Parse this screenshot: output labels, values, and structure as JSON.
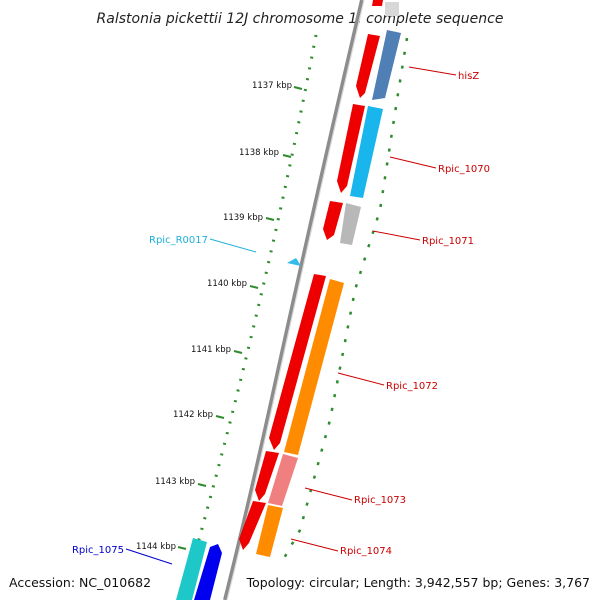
{
  "title": "Ralstonia pickettii 12J chromosome 1, complete sequence",
  "footer": {
    "accession": "Accession: NC_010682",
    "summary": "Topology: circular; Length: 3,942,557 bp; Genes: 3,767"
  },
  "colors": {
    "backbone": "#8c8c8c",
    "tick_green": "#2e8b2e",
    "label_red": "#cc0000",
    "label_cyan": "#1fb0d8",
    "label_blue": "#0000cc"
  },
  "ticks": [
    {
      "label": "1137 kbp"
    },
    {
      "label": "1138 kbp"
    },
    {
      "label": "1139 kbp"
    },
    {
      "label": "1140 kbp"
    },
    {
      "label": "1141 kbp"
    },
    {
      "label": "1142 kbp"
    },
    {
      "label": "1143 kbp"
    },
    {
      "label": "1144 kbp"
    }
  ],
  "gene_labels": [
    {
      "id": "hisZ",
      "text": "hisZ",
      "color": "#cc0000"
    },
    {
      "id": "rpic-1070",
      "text": "Rpic_1070",
      "color": "#cc0000"
    },
    {
      "id": "rpic-1071",
      "text": "Rpic_1071",
      "color": "#cc0000"
    },
    {
      "id": "rpic-r0017",
      "text": "Rpic_R0017",
      "color": "#1fb0d8"
    },
    {
      "id": "rpic-1072",
      "text": "Rpic_1072",
      "color": "#cc0000"
    },
    {
      "id": "rpic-1073",
      "text": "Rpic_1073",
      "color": "#cc0000"
    },
    {
      "id": "rpic-1074",
      "text": "Rpic_1074",
      "color": "#cc0000"
    },
    {
      "id": "rpic-1075",
      "text": "Rpic_1075",
      "color": "#0000cc"
    }
  ],
  "features": [
    {
      "id": "hisZ",
      "track_color": "#4f7fb5"
    },
    {
      "id": "rpic-1070",
      "track_color": "#19b6ee"
    },
    {
      "id": "rpic-1071",
      "track_color": "#b8b8b8"
    },
    {
      "id": "rpic-r0017",
      "track_color": "#33bbee"
    },
    {
      "id": "rpic-1072",
      "track_color": "#ff8c00"
    },
    {
      "id": "rpic-1073",
      "track_color": "#f08080"
    },
    {
      "id": "rpic-1074",
      "track_color": "#ff8c00"
    },
    {
      "id": "rpic-1075",
      "track_color": "#1ec8c8"
    },
    {
      "id": "rpic-1075b",
      "track_color": "#0000ee"
    }
  ]
}
